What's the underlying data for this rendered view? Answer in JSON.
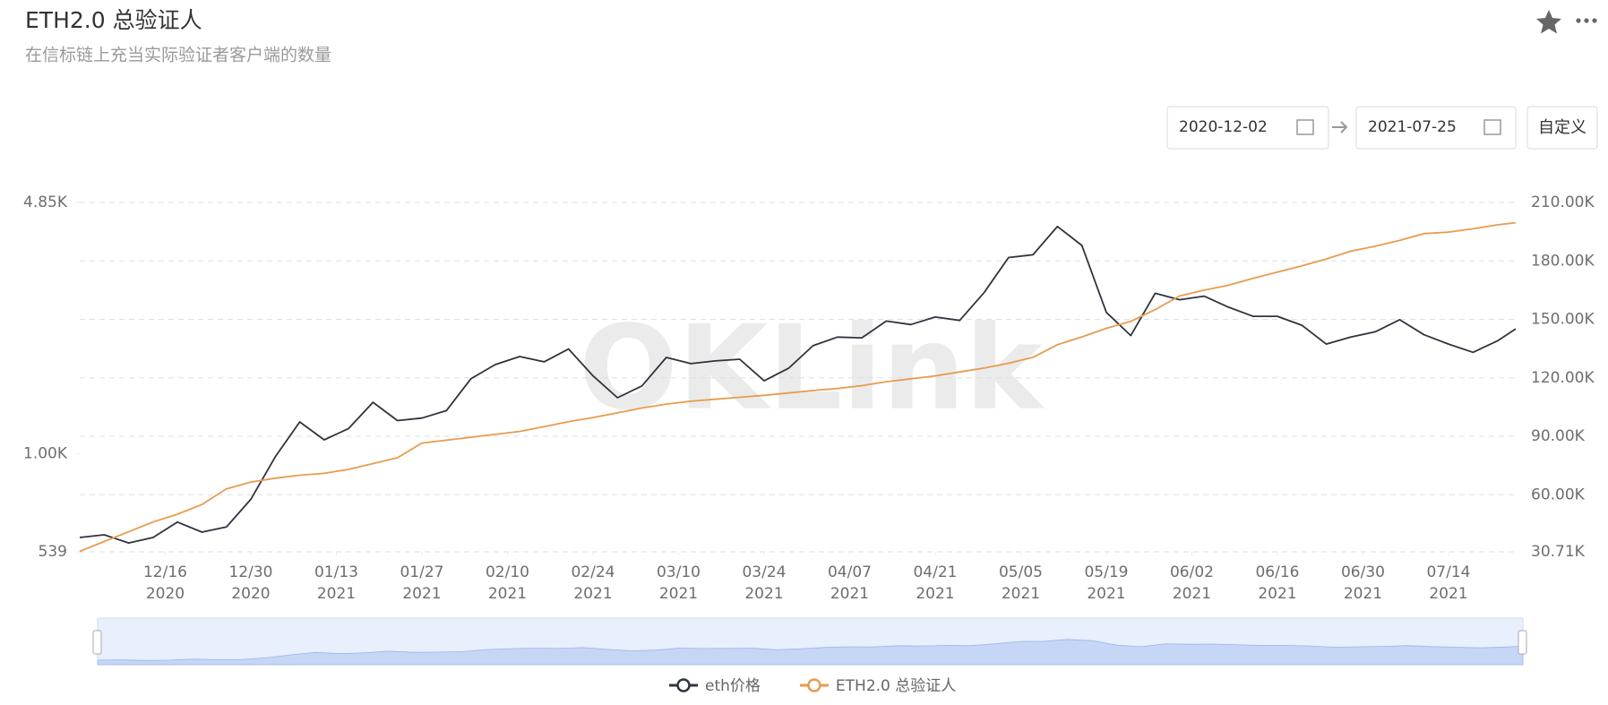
{
  "chart_data": {
    "type": "line",
    "title": "ETH2.0 总验证人",
    "subtitle": "在信标链上充当实际验证者客户端的数量",
    "watermark": "OKLink",
    "yscale": "log",
    "grid": true,
    "legend": "bottom",
    "xlim": [
      "2020-12-02",
      "2021-07-25"
    ],
    "xticks": [
      {
        "value": "2020-12-16",
        "label": [
          "12/16",
          "2020"
        ]
      },
      {
        "value": "2020-12-30",
        "label": [
          "12/30",
          "2020"
        ]
      },
      {
        "value": "2021-01-13",
        "label": [
          "01/13",
          "2021"
        ]
      },
      {
        "value": "2021-01-27",
        "label": [
          "01/27",
          "2021"
        ]
      },
      {
        "value": "2021-02-10",
        "label": [
          "02/10",
          "2021"
        ]
      },
      {
        "value": "2021-02-24",
        "label": [
          "02/24",
          "2021"
        ]
      },
      {
        "value": "2021-03-10",
        "label": [
          "03/10",
          "2021"
        ]
      },
      {
        "value": "2021-03-24",
        "label": [
          "03/24",
          "2021"
        ]
      },
      {
        "value": "2021-04-07",
        "label": [
          "04/07",
          "2021"
        ]
      },
      {
        "value": "2021-04-21",
        "label": [
          "04/21",
          "2021"
        ]
      },
      {
        "value": "2021-05-05",
        "label": [
          "05/05",
          "2021"
        ]
      },
      {
        "value": "2021-05-19",
        "label": [
          "05/19",
          "2021"
        ]
      },
      {
        "value": "2021-06-02",
        "label": [
          "06/02",
          "2021"
        ]
      },
      {
        "value": "2021-06-16",
        "label": [
          "06/16",
          "2021"
        ]
      },
      {
        "value": "2021-06-30",
        "label": [
          "06/30",
          "2021"
        ]
      },
      {
        "value": "2021-07-14",
        "label": [
          "07/14",
          "2021"
        ]
      }
    ],
    "ylim": [
      539,
      4850
    ],
    "yticks": [
      539,
      {
        "value": 1000,
        "label": "1.00K"
      },
      {
        "value": 4850,
        "label": "4.85K"
      }
    ],
    "y2lim": [
      30710,
      210000
    ],
    "y2ticks": [
      {
        "value": 30710,
        "label": "30.71K"
      },
      {
        "value": 60000,
        "label": "60.00K"
      },
      {
        "value": 90000,
        "label": "90.00K"
      },
      {
        "value": 120000,
        "label": "120.00K"
      },
      {
        "value": 150000,
        "label": "150.00K"
      },
      {
        "value": 180000,
        "label": "180.00K"
      },
      {
        "value": 210000,
        "label": "210.00K"
      }
    ],
    "x": [
      "2020-12-02",
      "2020-12-06",
      "2020-12-10",
      "2020-12-14",
      "2020-12-18",
      "2020-12-22",
      "2020-12-26",
      "2020-12-30",
      "2021-01-03",
      "2021-01-07",
      "2021-01-11",
      "2021-01-15",
      "2021-01-19",
      "2021-01-23",
      "2021-01-27",
      "2021-01-31",
      "2021-02-04",
      "2021-02-08",
      "2021-02-12",
      "2021-02-16",
      "2021-02-20",
      "2021-02-24",
      "2021-02-28",
      "2021-03-04",
      "2021-03-08",
      "2021-03-12",
      "2021-03-16",
      "2021-03-20",
      "2021-03-24",
      "2021-03-28",
      "2021-04-01",
      "2021-04-05",
      "2021-04-09",
      "2021-04-13",
      "2021-04-17",
      "2021-04-21",
      "2021-04-25",
      "2021-04-29",
      "2021-05-03",
      "2021-05-07",
      "2021-05-11",
      "2021-05-15",
      "2021-05-19",
      "2021-05-23",
      "2021-05-27",
      "2021-05-31",
      "2021-06-04",
      "2021-06-08",
      "2021-06-12",
      "2021-06-16",
      "2021-06-20",
      "2021-06-24",
      "2021-06-28",
      "2021-07-02",
      "2021-07-06",
      "2021-07-10",
      "2021-07-14",
      "2021-07-18",
      "2021-07-22",
      "2021-07-25"
    ],
    "series": [
      {
        "name": "eth价格",
        "color": "#2f343d",
        "axis": "y",
        "values": [
          590,
          600,
          570,
          590,
          650,
          610,
          630,
          750,
          980,
          1220,
          1090,
          1170,
          1380,
          1230,
          1250,
          1310,
          1600,
          1750,
          1840,
          1780,
          1930,
          1630,
          1420,
          1530,
          1830,
          1760,
          1790,
          1810,
          1580,
          1710,
          1970,
          2080,
          2070,
          2300,
          2250,
          2360,
          2310,
          2750,
          3430,
          3490,
          4170,
          3700,
          2430,
          2100,
          2740,
          2630,
          2690,
          2510,
          2370,
          2370,
          2240,
          1990,
          2080,
          2150,
          2320,
          2110,
          1990,
          1890,
          2030,
          2190
        ]
      },
      {
        "name": "ETH2.0 总验证人",
        "color": "#e89b4f",
        "axis": "y2",
        "values": [
          31000,
          36000,
          41000,
          46000,
          50000,
          55000,
          63000,
          66500,
          68500,
          70000,
          71000,
          73000,
          76000,
          79000,
          86500,
          88000,
          89500,
          91000,
          92500,
          95000,
          97500,
          99600,
          102000,
          104500,
          106500,
          108000,
          109000,
          110000,
          111000,
          112200,
          113500,
          114500,
          116000,
          118000,
          119500,
          121000,
          123000,
          125000,
          127500,
          130500,
          137000,
          141000,
          145400,
          149000,
          155000,
          162000,
          165000,
          167500,
          171000,
          174300,
          177500,
          181000,
          185000,
          187500,
          190500,
          194000,
          194800,
          196500,
          198500,
          199600
        ]
      }
    ]
  },
  "controls": {
    "start_date": "2020-12-02",
    "end_date": "2021-07-25",
    "custom_button": "自定义"
  }
}
